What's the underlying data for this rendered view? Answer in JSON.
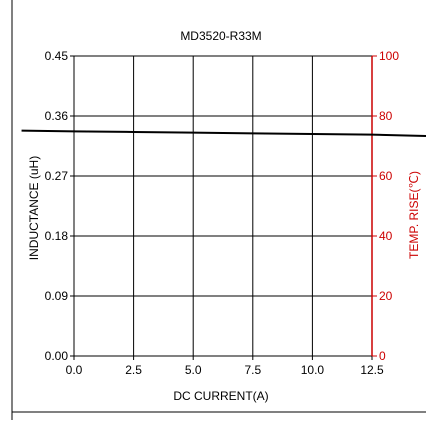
{
  "chart_data": {
    "type": "line",
    "title": "MD3520-R33M",
    "xlabel": "DC CURRENT(A)",
    "ylabel_left": "INDUCTANCE (uH)",
    "ylabel_right": "TEMP. RISE(℃)",
    "xlim": [
      0.0,
      12.5
    ],
    "ylim_left": [
      0.0,
      0.45
    ],
    "ylim_right": [
      0,
      100
    ],
    "x_ticks": [
      "0.0",
      "2.5",
      "5.0",
      "7.5",
      "10.0",
      "12.5"
    ],
    "y_left_ticks": [
      "0.00",
      "0.09",
      "0.18",
      "0.27",
      "0.36",
      "0.45"
    ],
    "y_right_ticks": [
      "0",
      "20",
      "40",
      "60",
      "80",
      "100"
    ],
    "grid": true,
    "colors": {
      "axis": "#000000",
      "right_axis": "#cc0000",
      "series": "#000000"
    },
    "series": [
      {
        "axis": "left",
        "x": [
          -2.2,
          0.0,
          2.5,
          5.0,
          7.5,
          10.0,
          12.5,
          15.5
        ],
        "y": [
          0.338,
          0.337,
          0.336,
          0.335,
          0.334,
          0.333,
          0.332,
          0.33
        ]
      }
    ]
  }
}
